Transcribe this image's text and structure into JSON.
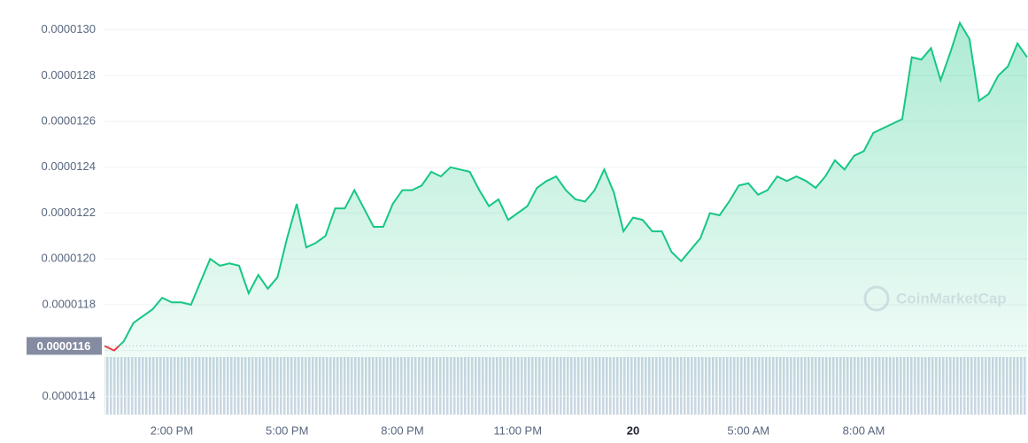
{
  "chart_data": {
    "type": "line",
    "annotations": {
      "current_price": "0.0000116",
      "watermark": "CoinMarketCap"
    },
    "categories": [
      null,
      null,
      null,
      null,
      null,
      null,
      null,
      "2:00 PM",
      null,
      null,
      null,
      null,
      null,
      null,
      null,
      null,
      null,
      null,
      null,
      "5:00 PM",
      null,
      null,
      null,
      null,
      null,
      null,
      null,
      null,
      null,
      null,
      null,
      "8:00 PM",
      null,
      null,
      null,
      null,
      null,
      null,
      null,
      null,
      null,
      null,
      null,
      "11:00 PM",
      null,
      null,
      null,
      null,
      null,
      null,
      null,
      null,
      null,
      null,
      null,
      "20",
      null,
      null,
      null,
      null,
      null,
      null,
      null,
      null,
      null,
      null,
      null,
      "5:00 AM",
      null,
      null,
      null,
      null,
      null,
      null,
      null,
      null,
      null,
      null,
      null,
      "8:00 AM",
      null,
      null,
      null,
      null,
      null,
      null,
      null,
      null,
      null,
      null,
      null,
      null,
      null,
      null,
      null,
      null,
      null
    ],
    "series": [
      {
        "color": "#16c784",
        "below_color": "#ea3943",
        "values": [
          1.162e-05,
          1.16e-05,
          1.164e-05,
          1.172e-05,
          1.175e-05,
          1.178e-05,
          1.183e-05,
          1.181e-05,
          1.181e-05,
          1.18e-05,
          1.19e-05,
          1.2e-05,
          1.197e-05,
          1.198e-05,
          1.197e-05,
          1.185e-05,
          1.193e-05,
          1.187e-05,
          1.192e-05,
          1.209e-05,
          1.224e-05,
          1.205e-05,
          1.207e-05,
          1.21e-05,
          1.222e-05,
          1.222e-05,
          1.23e-05,
          1.222e-05,
          1.214e-05,
          1.214e-05,
          1.224e-05,
          1.23e-05,
          1.23e-05,
          1.232e-05,
          1.238e-05,
          1.236e-05,
          1.24e-05,
          1.239e-05,
          1.238e-05,
          1.23e-05,
          1.223e-05,
          1.226e-05,
          1.217e-05,
          1.22e-05,
          1.223e-05,
          1.231e-05,
          1.234e-05,
          1.236e-05,
          1.23e-05,
          1.226e-05,
          1.225e-05,
          1.23e-05,
          1.239e-05,
          1.229e-05,
          1.212e-05,
          1.218e-05,
          1.217e-05,
          1.212e-05,
          1.212e-05,
          1.203e-05,
          1.199e-05,
          1.204e-05,
          1.209e-05,
          1.22e-05,
          1.219e-05,
          1.225e-05,
          1.232e-05,
          1.233e-05,
          1.228e-05,
          1.23e-05,
          1.236e-05,
          1.234e-05,
          1.236e-05,
          1.234e-05,
          1.231e-05,
          1.236e-05,
          1.243e-05,
          1.239e-05,
          1.245e-05,
          1.247e-05,
          1.255e-05,
          1.257e-05,
          1.259e-05,
          1.261e-05,
          1.288e-05,
          1.287e-05,
          1.292e-05,
          1.278e-05,
          1.29e-05,
          1.303e-05,
          1.296e-05,
          1.269e-05,
          1.272e-05,
          1.28e-05,
          1.284e-05,
          1.294e-05,
          1.288e-05
        ]
      }
    ],
    "ylim": [
      1.132e-05,
      1.313e-05
    ],
    "yticks": [
      1.14e-05,
      1.16e-05,
      1.18e-05,
      {
        "value": 1.2e-05,
        "label": "0.0000120"
      },
      1.22e-05,
      1.24e-05,
      1.26e-05,
      1.28e-05,
      {
        "value": 1.3e-05,
        "label": "0.0000130"
      }
    ],
    "grid": true
  }
}
